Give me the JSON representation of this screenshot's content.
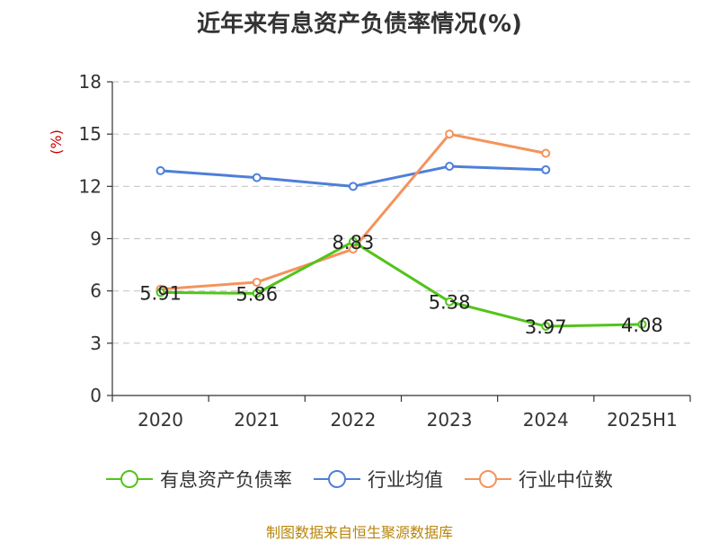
{
  "chart_data": {
    "type": "line",
    "title": "近年来有息资产负债率情况(%)",
    "ylabel": "(%)",
    "categories": [
      "2020",
      "2021",
      "2022",
      "2023",
      "2024",
      "2025H1"
    ],
    "ylim": [
      0,
      18
    ],
    "yticks": [
      "0",
      "3",
      "6",
      "9",
      "12",
      "15",
      "18"
    ],
    "grid": "horizontal dashed",
    "legend_position": "bottom",
    "series": [
      {
        "name": "有息资产负债率",
        "color": "#52c41a",
        "values": [
          5.91,
          5.86,
          8.83,
          5.38,
          3.97,
          4.08
        ],
        "labels": [
          "5.91",
          "5.86",
          "8.83",
          "5.38",
          "3.97",
          "4.08"
        ]
      },
      {
        "name": "行业均值",
        "color": "#4e7fd9",
        "values": [
          12.9,
          12.5,
          12.0,
          13.15,
          12.95,
          null
        ]
      },
      {
        "name": "行业中位数",
        "color": "#f4935c",
        "values": [
          6.1,
          6.5,
          8.4,
          15.0,
          13.9,
          null
        ]
      }
    ]
  },
  "source": "制图数据来自恒生聚源数据库"
}
